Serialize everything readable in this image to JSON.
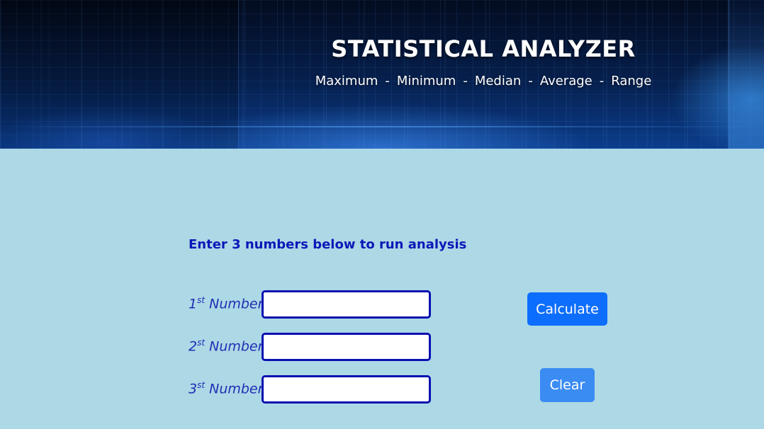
{
  "header": {
    "title": "STATISTICAL ANALYZER",
    "subtitle_items": [
      "Maximum",
      "Minimum",
      "Median",
      "Average",
      "Range"
    ],
    "separator": "-"
  },
  "form": {
    "instruction": "Enter 3 numbers below to run analysis",
    "fields": [
      {
        "ordinal": "1",
        "suffix": "st",
        "label": "Number",
        "value": ""
      },
      {
        "ordinal": "2",
        "suffix": "st",
        "label": "Number",
        "value": ""
      },
      {
        "ordinal": "3",
        "suffix": "st",
        "label": "Number",
        "value": ""
      }
    ],
    "calculate_label": "Calculate",
    "clear_label": "Clear"
  },
  "colors": {
    "page_background": "#add8e6",
    "instruction_text": "#0b18b8",
    "input_border": "#0a10b0",
    "calculate_button": "#0d6efd",
    "clear_button": "#3a8cf3"
  }
}
